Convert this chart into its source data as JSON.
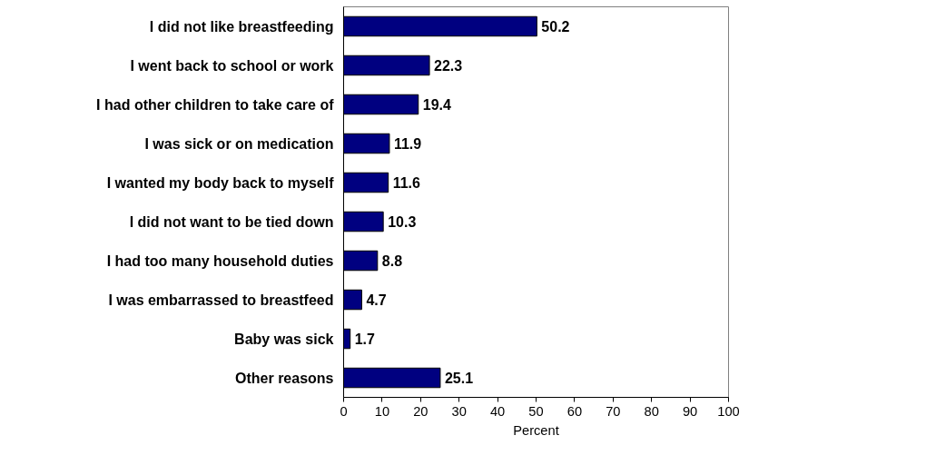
{
  "chart_data": {
    "type": "bar",
    "orientation": "horizontal",
    "xlabel": "Percent",
    "categories": [
      "I did not like breastfeeding",
      "I went back to school or work",
      "I had other children to take care of",
      "I was sick or on medication",
      "I wanted my body back to myself",
      "I did not want to be tied down",
      "I had too many household duties",
      "I was embarrassed to breastfeed",
      "Baby was sick",
      "Other reasons"
    ],
    "values": [
      50.2,
      22.3,
      19.4,
      11.9,
      11.6,
      10.3,
      8.8,
      4.7,
      1.7,
      25.1
    ],
    "color": "#000080",
    "data_labels": true,
    "xlim": [
      0,
      100
    ],
    "xticks": [
      0,
      10,
      20,
      30,
      40,
      50,
      60,
      70,
      80,
      90,
      100
    ]
  }
}
